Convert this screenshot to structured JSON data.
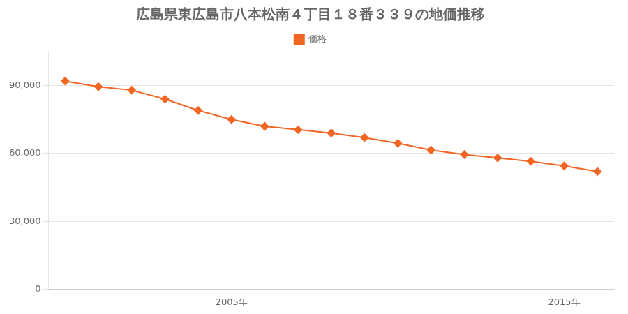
{
  "chart_data": {
    "type": "line",
    "title": "広島県東広島市八本松南４丁目１８番３３９の地価推移",
    "x": [
      2000,
      2001,
      2002,
      2003,
      2004,
      2005,
      2006,
      2007,
      2008,
      2009,
      2010,
      2011,
      2012,
      2013,
      2014,
      2015,
      2016
    ],
    "series": [
      {
        "name": "価格",
        "color": "#f26522",
        "marker": "diamond",
        "values": [
          92000,
          89500,
          88000,
          84000,
          79000,
          75000,
          72000,
          70500,
          69000,
          67000,
          64500,
          61500,
          59500,
          58000,
          56500,
          54500,
          52000
        ]
      }
    ],
    "xlim": [
      1999.5,
      2016.5
    ],
    "xticks": [
      {
        "value": 2005,
        "label": "2005年"
      },
      {
        "value": 2015,
        "label": "2015年"
      }
    ],
    "ylim": [
      0,
      105000
    ],
    "yticks": [
      0,
      {
        "value": 30000,
        "label": "30,000"
      },
      {
        "value": 60000,
        "label": "60,000"
      },
      {
        "value": 90000,
        "label": "90,000"
      }
    ],
    "grid": "y",
    "legend": "top"
  }
}
